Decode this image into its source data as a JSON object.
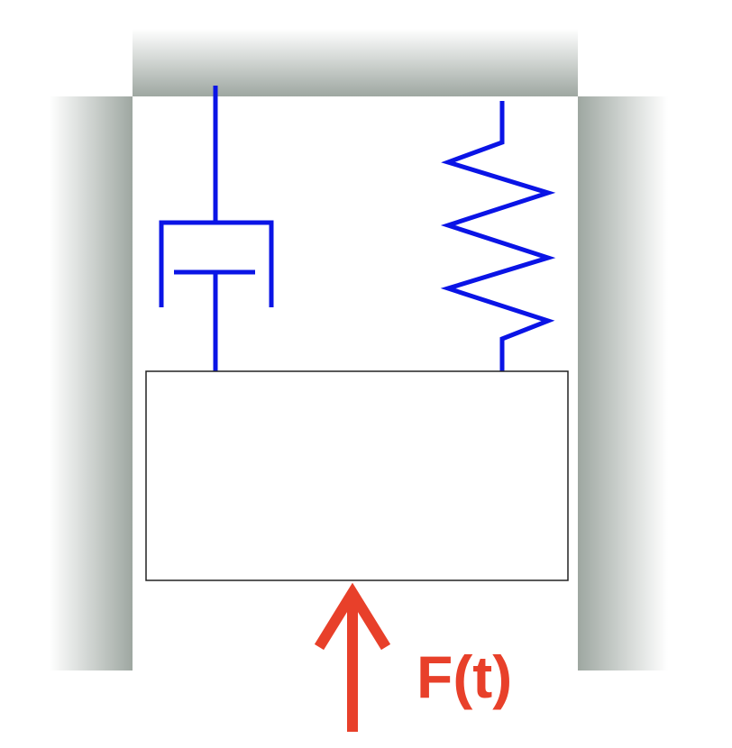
{
  "diagram": {
    "force_label": "F(t)",
    "colors": {
      "spring_damper": "#0a14e6",
      "force": "#e8402a",
      "mass_border": "#222222",
      "wall_dark": "#9ea7a1",
      "wall_light": "#ffffff"
    }
  }
}
